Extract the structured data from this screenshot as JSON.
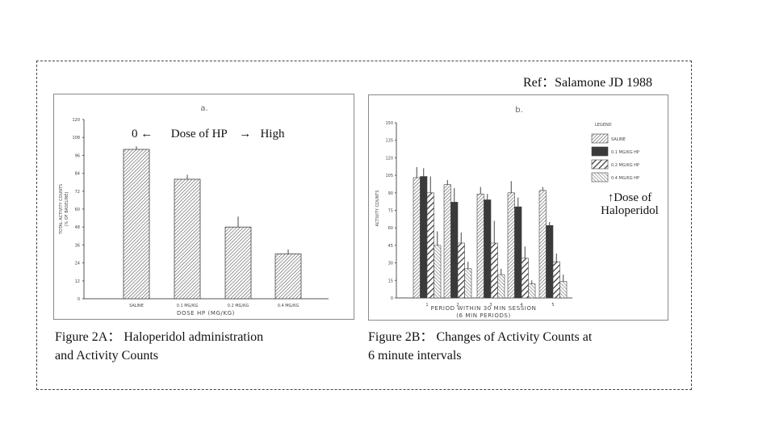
{
  "ref": "Ref：Salamone JD 1988",
  "dose_annotation": "0 ←      Dose of HP    →   High",
  "dose_arrow_note": [
    "↑Dose of",
    "Haloperidol"
  ],
  "caption_a": [
    "Figure 2A： Haloperidol administration",
    "and Activity Counts"
  ],
  "caption_b": [
    "Figure 2B： Changes of Activity Counts at",
    "6 minute intervals"
  ],
  "colors": {
    "border": "#8a8a8a",
    "axis": "#555555",
    "solid": "#3a3a3a"
  },
  "chart_data": [
    {
      "type": "bar",
      "title": "a.",
      "ylabel": [
        "TOTAL ACTIVITY COUNTS",
        "(% OF BASELINE)"
      ],
      "xlabel": "DOSE HP (MG/KG)",
      "ylim": [
        0,
        120
      ],
      "yticks": [
        "0",
        "12",
        "24",
        "36",
        "48",
        "60",
        "72",
        "84",
        "96",
        "108",
        "120"
      ],
      "categories": [
        "SALINE",
        "0.1 MG/KG",
        "0.2 MG/KG",
        "0.4 MG/KG"
      ],
      "values": [
        100,
        80,
        48,
        30
      ],
      "errors": [
        2,
        3,
        7,
        3
      ]
    },
    {
      "type": "bar",
      "title": "b.",
      "ylabel": "ACTIVITY COUNTS",
      "xlabel": [
        "PERIOD  WITHIN  30  MIN  SESSION",
        "(6  MIN  PERIODS)"
      ],
      "ylim": [
        0,
        150
      ],
      "yticks": [
        "0",
        "15",
        "30",
        "45",
        "60",
        "75",
        "90",
        "105",
        "120",
        "135",
        "150"
      ],
      "categories": [
        "1",
        "2",
        "3",
        "4",
        "5"
      ],
      "legend_title": "LEGEND",
      "legend_position": "right",
      "series": [
        {
          "name": "SALINE",
          "pattern": "hatch-fine",
          "values": [
            103,
            97,
            89,
            90,
            92
          ],
          "errors": [
            9,
            4,
            6,
            10,
            3
          ]
        },
        {
          "name": "0.1 MG/KG HP",
          "pattern": "solid",
          "values": [
            104,
            82,
            84,
            78,
            62
          ],
          "errors": [
            7,
            12,
            5,
            8,
            3
          ]
        },
        {
          "name": "0.2 MG/KG HP",
          "pattern": "hatch-wide",
          "values": [
            90,
            47,
            47,
            34,
            31
          ],
          "errors": [
            14,
            9,
            19,
            10,
            7
          ]
        },
        {
          "name": "0.4 MG/KG HP",
          "pattern": "hatch-cross",
          "values": [
            45,
            25,
            20,
            12,
            14
          ],
          "errors": [
            12,
            6,
            5,
            3,
            6
          ]
        }
      ]
    }
  ]
}
